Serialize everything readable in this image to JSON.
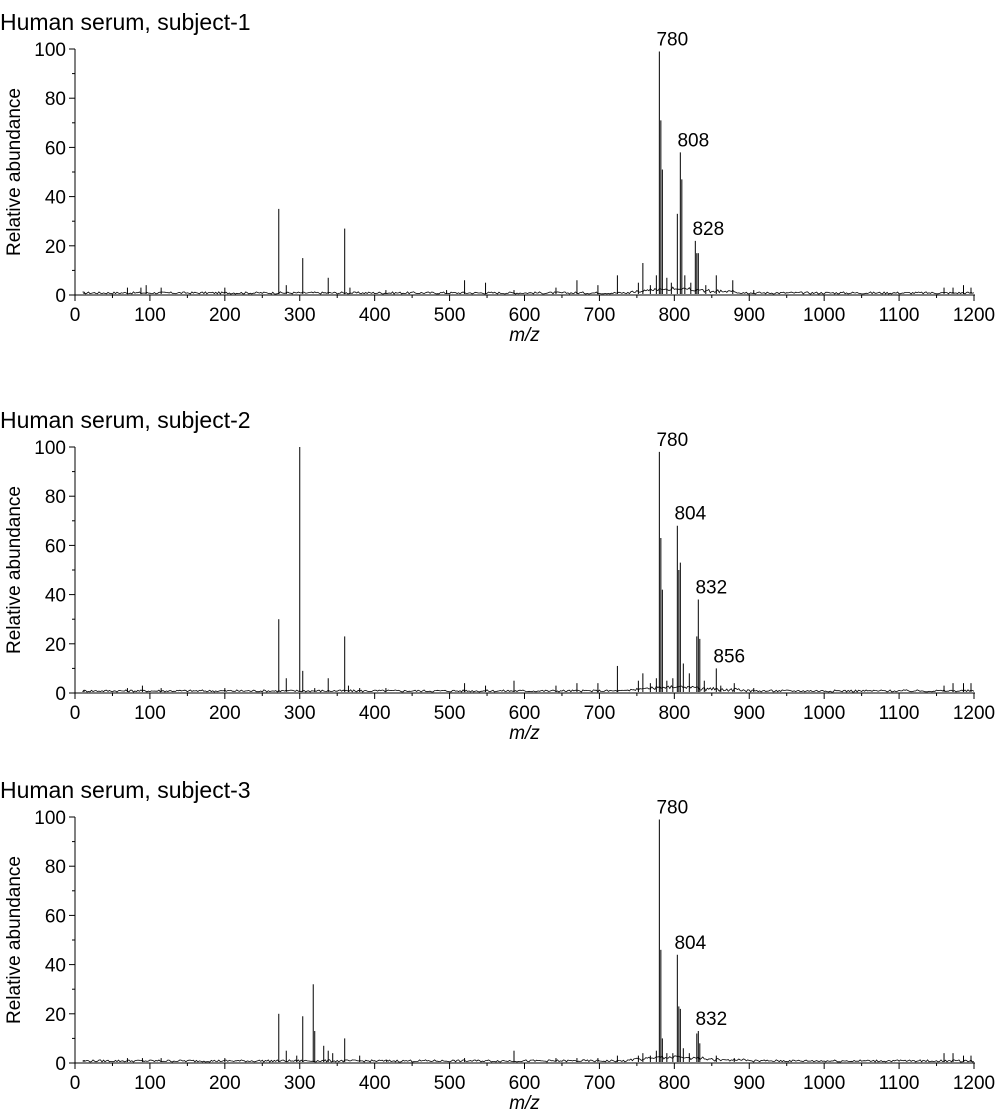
{
  "chart_data": [
    {
      "type": "line",
      "title": "Human serum, subject-1",
      "xlabel": "m/z",
      "ylabel": "Relative abundance",
      "xlim": [
        0,
        1200
      ],
      "ylim": [
        0,
        100
      ],
      "xticks": [
        0,
        100,
        200,
        300,
        400,
        500,
        600,
        700,
        800,
        900,
        1000,
        1100,
        1200
      ],
      "yticks": [
        0,
        20,
        40,
        60,
        80,
        100
      ],
      "grid": false,
      "peaks": [
        {
          "x": 12,
          "y": 1
        },
        {
          "x": 70,
          "y": 3
        },
        {
          "x": 88,
          "y": 3
        },
        {
          "x": 95,
          "y": 4
        },
        {
          "x": 115,
          "y": 3
        },
        {
          "x": 200,
          "y": 3
        },
        {
          "x": 272,
          "y": 35
        },
        {
          "x": 282,
          "y": 4
        },
        {
          "x": 304,
          "y": 15
        },
        {
          "x": 338,
          "y": 7
        },
        {
          "x": 360,
          "y": 27
        },
        {
          "x": 367,
          "y": 3
        },
        {
          "x": 415,
          "y": 2
        },
        {
          "x": 496,
          "y": 2
        },
        {
          "x": 520,
          "y": 6
        },
        {
          "x": 548,
          "y": 5
        },
        {
          "x": 586,
          "y": 2
        },
        {
          "x": 642,
          "y": 3
        },
        {
          "x": 670,
          "y": 6
        },
        {
          "x": 698,
          "y": 4
        },
        {
          "x": 724,
          "y": 8
        },
        {
          "x": 752,
          "y": 5
        },
        {
          "x": 758,
          "y": 13
        },
        {
          "x": 768,
          "y": 4
        },
        {
          "x": 776,
          "y": 8
        },
        {
          "x": 780,
          "y": 99
        },
        {
          "x": 782,
          "y": 71
        },
        {
          "x": 784,
          "y": 51
        },
        {
          "x": 790,
          "y": 7
        },
        {
          "x": 796,
          "y": 5
        },
        {
          "x": 804,
          "y": 33
        },
        {
          "x": 808,
          "y": 58
        },
        {
          "x": 810,
          "y": 47
        },
        {
          "x": 814,
          "y": 8
        },
        {
          "x": 822,
          "y": 5
        },
        {
          "x": 828,
          "y": 22
        },
        {
          "x": 830,
          "y": 17
        },
        {
          "x": 832,
          "y": 17
        },
        {
          "x": 842,
          "y": 4
        },
        {
          "x": 856,
          "y": 8
        },
        {
          "x": 878,
          "y": 6
        },
        {
          "x": 906,
          "y": 2
        },
        {
          "x": 1160,
          "y": 3
        },
        {
          "x": 1172,
          "y": 3
        },
        {
          "x": 1186,
          "y": 4
        },
        {
          "x": 1196,
          "y": 3
        }
      ],
      "labels": [
        {
          "x": 780,
          "text": "780"
        },
        {
          "x": 808,
          "text": "808"
        },
        {
          "x": 828,
          "text": "828"
        }
      ]
    },
    {
      "type": "line",
      "title": "Human serum, subject-2",
      "xlabel": "m/z",
      "ylabel": "Relative abundance",
      "xlim": [
        0,
        1200
      ],
      "ylim": [
        0,
        100
      ],
      "xticks": [
        0,
        100,
        200,
        300,
        400,
        500,
        600,
        700,
        800,
        900,
        1000,
        1100,
        1200
      ],
      "yticks": [
        0,
        20,
        40,
        60,
        80,
        100
      ],
      "grid": false,
      "peaks": [
        {
          "x": 12,
          "y": 1
        },
        {
          "x": 70,
          "y": 2
        },
        {
          "x": 90,
          "y": 3
        },
        {
          "x": 115,
          "y": 2
        },
        {
          "x": 200,
          "y": 2
        },
        {
          "x": 272,
          "y": 30
        },
        {
          "x": 282,
          "y": 6
        },
        {
          "x": 300,
          "y": 100
        },
        {
          "x": 304,
          "y": 9
        },
        {
          "x": 320,
          "y": 2
        },
        {
          "x": 338,
          "y": 6
        },
        {
          "x": 360,
          "y": 23
        },
        {
          "x": 365,
          "y": 3
        },
        {
          "x": 380,
          "y": 2
        },
        {
          "x": 415,
          "y": 2
        },
        {
          "x": 520,
          "y": 4
        },
        {
          "x": 548,
          "y": 3
        },
        {
          "x": 586,
          "y": 5
        },
        {
          "x": 642,
          "y": 3
        },
        {
          "x": 670,
          "y": 4
        },
        {
          "x": 698,
          "y": 4
        },
        {
          "x": 724,
          "y": 11
        },
        {
          "x": 752,
          "y": 5
        },
        {
          "x": 758,
          "y": 8
        },
        {
          "x": 768,
          "y": 4
        },
        {
          "x": 776,
          "y": 6
        },
        {
          "x": 780,
          "y": 98
        },
        {
          "x": 782,
          "y": 63
        },
        {
          "x": 784,
          "y": 42
        },
        {
          "x": 790,
          "y": 5
        },
        {
          "x": 798,
          "y": 6
        },
        {
          "x": 804,
          "y": 68
        },
        {
          "x": 806,
          "y": 50
        },
        {
          "x": 808,
          "y": 53
        },
        {
          "x": 812,
          "y": 12
        },
        {
          "x": 820,
          "y": 8
        },
        {
          "x": 830,
          "y": 23
        },
        {
          "x": 832,
          "y": 38
        },
        {
          "x": 834,
          "y": 22
        },
        {
          "x": 840,
          "y": 5
        },
        {
          "x": 856,
          "y": 10
        },
        {
          "x": 862,
          "y": 3
        },
        {
          "x": 880,
          "y": 4
        },
        {
          "x": 906,
          "y": 2
        },
        {
          "x": 1160,
          "y": 3
        },
        {
          "x": 1172,
          "y": 4
        },
        {
          "x": 1186,
          "y": 4
        },
        {
          "x": 1196,
          "y": 4
        }
      ],
      "labels": [
        {
          "x": 780,
          "text": "780"
        },
        {
          "x": 804,
          "text": "804"
        },
        {
          "x": 832,
          "text": "832"
        },
        {
          "x": 856,
          "text": "856"
        }
      ]
    },
    {
      "type": "line",
      "title": "Human serum, subject-3",
      "xlabel": "m/z",
      "ylabel": "Relative abundance",
      "xlim": [
        0,
        1200
      ],
      "ylim": [
        0,
        100
      ],
      "xticks": [
        0,
        100,
        200,
        300,
        400,
        500,
        600,
        700,
        800,
        900,
        1000,
        1100,
        1200
      ],
      "yticks": [
        0,
        20,
        40,
        60,
        80,
        100
      ],
      "grid": false,
      "peaks": [
        {
          "x": 12,
          "y": 1
        },
        {
          "x": 70,
          "y": 2
        },
        {
          "x": 90,
          "y": 2
        },
        {
          "x": 115,
          "y": 2
        },
        {
          "x": 200,
          "y": 2
        },
        {
          "x": 272,
          "y": 20
        },
        {
          "x": 282,
          "y": 5
        },
        {
          "x": 296,
          "y": 3
        },
        {
          "x": 304,
          "y": 19
        },
        {
          "x": 318,
          "y": 32
        },
        {
          "x": 320,
          "y": 13
        },
        {
          "x": 332,
          "y": 7
        },
        {
          "x": 338,
          "y": 5
        },
        {
          "x": 344,
          "y": 4
        },
        {
          "x": 360,
          "y": 10
        },
        {
          "x": 380,
          "y": 3
        },
        {
          "x": 416,
          "y": 1
        },
        {
          "x": 520,
          "y": 2
        },
        {
          "x": 586,
          "y": 5
        },
        {
          "x": 642,
          "y": 2
        },
        {
          "x": 670,
          "y": 2
        },
        {
          "x": 698,
          "y": 2
        },
        {
          "x": 724,
          "y": 3
        },
        {
          "x": 752,
          "y": 3
        },
        {
          "x": 758,
          "y": 4
        },
        {
          "x": 768,
          "y": 3
        },
        {
          "x": 776,
          "y": 5
        },
        {
          "x": 780,
          "y": 99
        },
        {
          "x": 782,
          "y": 46
        },
        {
          "x": 784,
          "y": 10
        },
        {
          "x": 790,
          "y": 4
        },
        {
          "x": 798,
          "y": 4
        },
        {
          "x": 804,
          "y": 44
        },
        {
          "x": 806,
          "y": 23
        },
        {
          "x": 808,
          "y": 22
        },
        {
          "x": 812,
          "y": 6
        },
        {
          "x": 820,
          "y": 4
        },
        {
          "x": 830,
          "y": 12
        },
        {
          "x": 832,
          "y": 13
        },
        {
          "x": 834,
          "y": 8
        },
        {
          "x": 856,
          "y": 3
        },
        {
          "x": 880,
          "y": 2
        },
        {
          "x": 1160,
          "y": 4
        },
        {
          "x": 1172,
          "y": 4
        },
        {
          "x": 1186,
          "y": 3
        },
        {
          "x": 1196,
          "y": 3
        }
      ],
      "labels": [
        {
          "x": 780,
          "text": "780"
        },
        {
          "x": 804,
          "text": "804"
        },
        {
          "x": 832,
          "text": "832"
        }
      ]
    }
  ]
}
